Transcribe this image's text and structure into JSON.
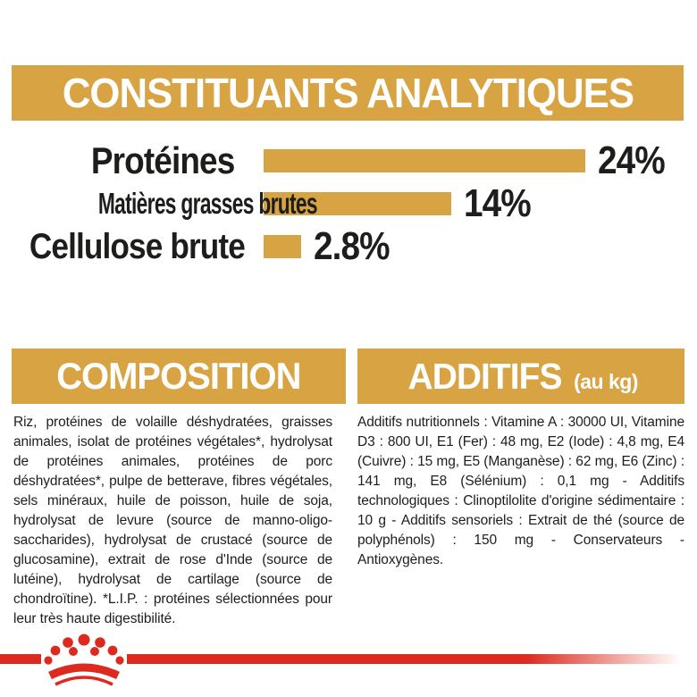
{
  "header": {
    "title": "CONSTITUANTS ANALYTIQUES"
  },
  "chart_data": {
    "type": "bar",
    "orientation": "horizontal",
    "title": "CONSTITUANTS ANALYTIQUES",
    "categories": [
      "Protéines",
      "Matières grasses brutes",
      "Cellulose brute"
    ],
    "values": [
      24,
      14,
      2.8
    ],
    "value_labels": [
      "24%",
      "14%",
      "2.8%"
    ],
    "unit": "%",
    "xlim": [
      0,
      24
    ],
    "grid": false,
    "legend": "none",
    "bar_color": "#D8A443"
  },
  "composition": {
    "title": "COMPOSITION",
    "body": "Riz, protéines de volaille déshydratées, graisses animales, isolat de protéines végétales*, hydrolysat de protéines animales, protéines de porc déshydratées*, pulpe de betterave, fibres végétales, sels minéraux, huile de poisson, huile de soja, hydrolysat de levure (source de manno-oligo-saccharides), hydrolysat de crustacé (source de glucosamine), extrait de rose d'Inde (source de lutéine), hydrolysat de cartilage (source de chondroïtine). *L.I.P. : protéines sélectionnées pour leur très haute digestibilité."
  },
  "additives": {
    "title": "ADDITIFS",
    "subtitle": "(au kg)",
    "body": "Additifs nutritionnels : Vitamine A : 30000 UI, Vitamine D3 : 800 UI, E1 (Fer) : 48 mg, E2 (Iode) : 4,8 mg, E4 (Cuivre) : 15 mg, E5 (Manganèse) : 62 mg, E6 (Zinc) : 141 mg, E8 (Sélénium) : 0,1 mg - Additifs technologiques : Clinoptilolite d'origine sédimentaire : 10 g - Additifs sensoriels : Extrait de thé (source de polyphénols) : 150 mg - Conservateurs - Antioxygènes."
  },
  "footer": {
    "brand_logo": "royal-canin-crown-icon"
  },
  "colors": {
    "gold": "#D8A443",
    "red": "#DC2A1E",
    "text": "#1D1D1B",
    "banner_text": "#FFFFFF",
    "background": "#FFFFFF"
  }
}
